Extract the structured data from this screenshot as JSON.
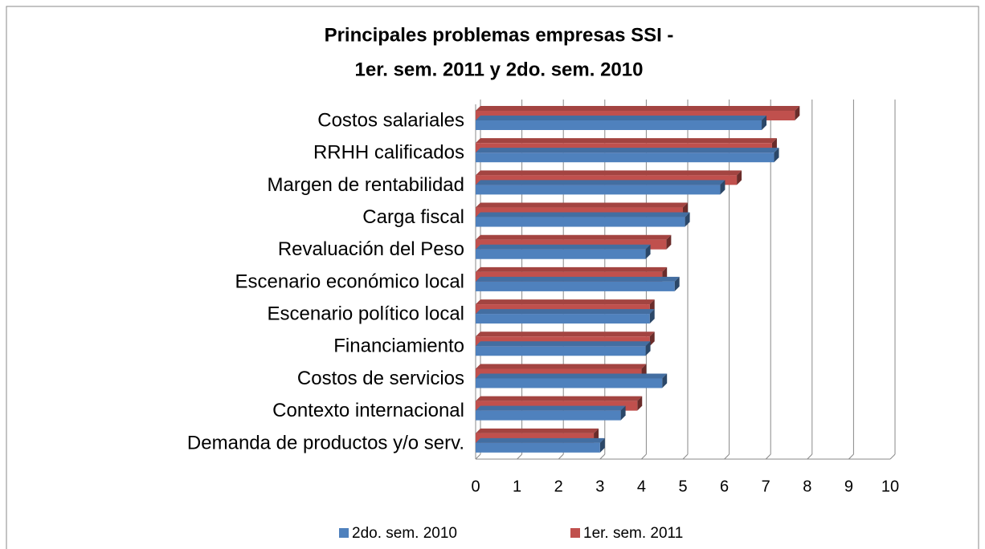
{
  "chart_data": {
    "type": "bar",
    "orientation": "horizontal",
    "title": [
      "Principales problemas empresas SSI -",
      "1er. sem. 2011 y 2do. sem. 2010"
    ],
    "categories": [
      "Costos salariales",
      "RRHH calificados",
      "Margen de rentabilidad",
      "Carga fiscal",
      "Revaluación del Peso",
      "Escenario económico local",
      "Escenario político local",
      "Financiamiento",
      "Costos de servicios",
      "Contexto internacional",
      "Demanda de productos y/o serv."
    ],
    "series": [
      {
        "name": "2do. sem. 2010",
        "color": "#4f81bd",
        "values": [
          6.9,
          7.2,
          5.9,
          5.05,
          4.1,
          4.8,
          4.2,
          4.1,
          4.5,
          3.5,
          3.0
        ]
      },
      {
        "name": "1er. sem. 2011",
        "color": "#c0504d",
        "values": [
          7.7,
          7.15,
          6.3,
          5.0,
          4.6,
          4.5,
          4.2,
          4.2,
          4.0,
          3.9,
          2.85
        ]
      }
    ],
    "xlim": [
      0,
      10
    ],
    "xticks": [
      0,
      1,
      2,
      3,
      4,
      5,
      6,
      7,
      8,
      9,
      10
    ],
    "grid": true,
    "legend": "bottom"
  }
}
